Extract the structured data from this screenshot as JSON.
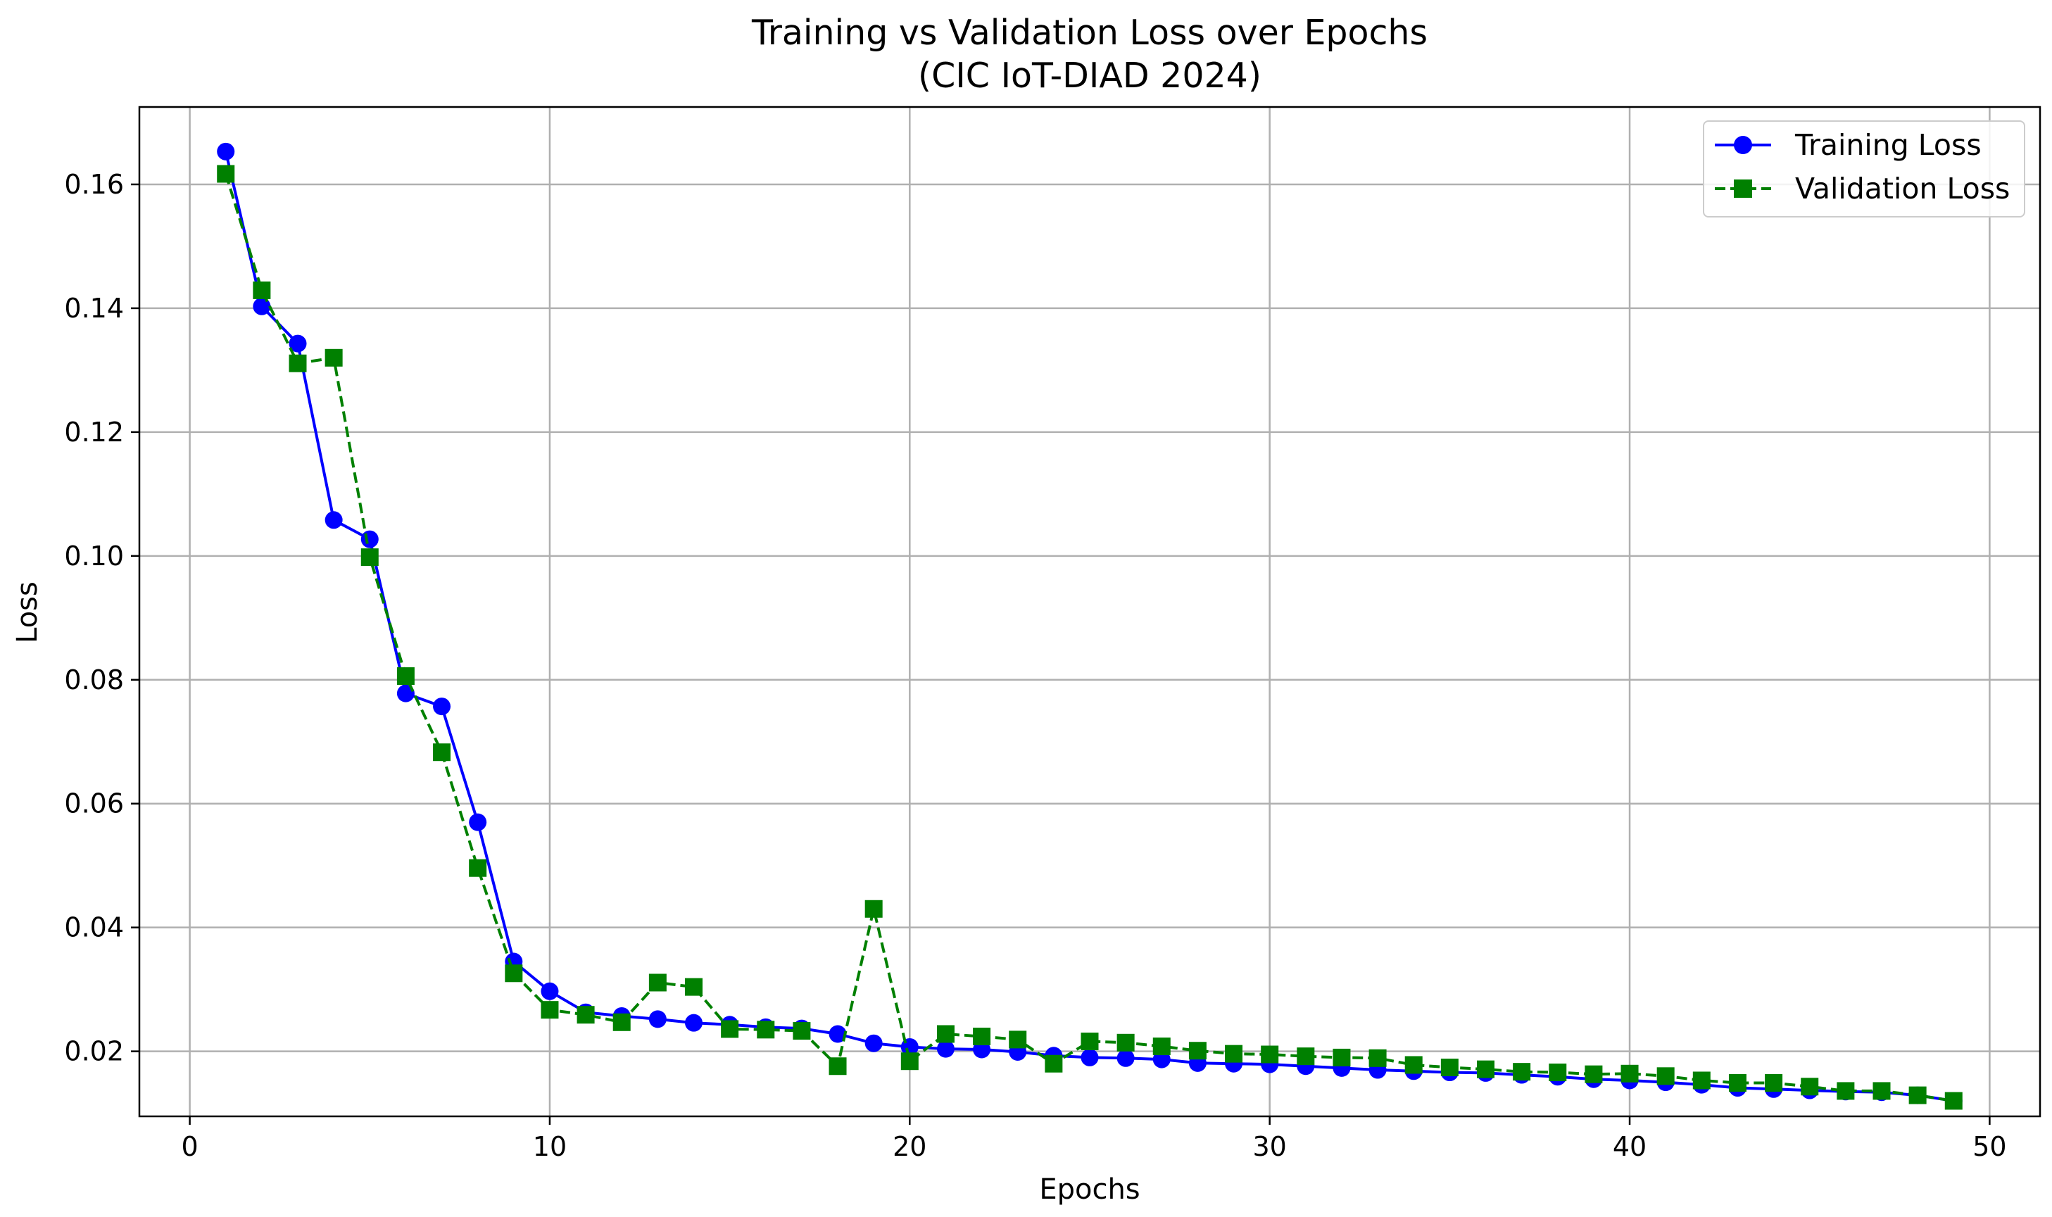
{
  "chart_data": {
    "type": "line",
    "title": "Training vs Validation Loss over Epochs",
    "subtitle": "(CIC IoT-DIAD 2024)",
    "xlabel": "Epochs",
    "ylabel": "Loss",
    "xlim": [
      -1.4,
      51.4
    ],
    "ylim": [
      0.0095,
      0.1725
    ],
    "xticks": [
      0,
      10,
      20,
      30,
      40,
      50
    ],
    "yticks": [
      0.02,
      0.04,
      0.06,
      0.08,
      0.1,
      0.12,
      0.14,
      0.16
    ],
    "ytick_labels": [
      "0.02",
      "0.04",
      "0.06",
      "0.08",
      "0.10",
      "0.12",
      "0.14",
      "0.16"
    ],
    "grid": true,
    "legend_position": "top-right",
    "x": [
      1,
      2,
      3,
      4,
      5,
      6,
      7,
      8,
      9,
      10,
      11,
      12,
      13,
      14,
      15,
      16,
      17,
      18,
      19,
      20,
      21,
      22,
      23,
      24,
      25,
      26,
      27,
      28,
      29,
      30,
      31,
      32,
      33,
      34,
      35,
      36,
      37,
      38,
      39,
      40,
      41,
      42,
      43,
      44,
      45,
      46,
      47,
      48,
      49
    ],
    "series": [
      {
        "name": "Training Loss",
        "color": "#0000ff",
        "marker": "circle",
        "linestyle": "solid",
        "values": [
          0.1653,
          0.1403,
          0.1343,
          0.1058,
          0.1027,
          0.0778,
          0.0757,
          0.057,
          0.0345,
          0.0297,
          0.0263,
          0.0257,
          0.0252,
          0.0246,
          0.0243,
          0.0239,
          0.0237,
          0.0228,
          0.0213,
          0.0207,
          0.0204,
          0.0203,
          0.0199,
          0.0193,
          0.019,
          0.0189,
          0.0187,
          0.0181,
          0.018,
          0.0179,
          0.0176,
          0.0173,
          0.017,
          0.0168,
          0.0166,
          0.0165,
          0.0162,
          0.0159,
          0.0155,
          0.0153,
          0.015,
          0.0146,
          0.0141,
          0.0139,
          0.0137,
          0.0135,
          0.0134,
          0.0129,
          0.012
        ]
      },
      {
        "name": "Validation Loss",
        "color": "#008000",
        "marker": "square",
        "linestyle": "dashed",
        "values": [
          0.1617,
          0.1429,
          0.1311,
          0.132,
          0.0998,
          0.0806,
          0.0683,
          0.0496,
          0.0326,
          0.0267,
          0.0259,
          0.0247,
          0.0311,
          0.0304,
          0.0236,
          0.0235,
          0.0233,
          0.0176,
          0.043,
          0.0184,
          0.0228,
          0.0224,
          0.0219,
          0.018,
          0.0216,
          0.0214,
          0.0208,
          0.0201,
          0.0196,
          0.0195,
          0.0192,
          0.019,
          0.0189,
          0.0178,
          0.0174,
          0.0171,
          0.0167,
          0.0166,
          0.0163,
          0.0164,
          0.016,
          0.0153,
          0.0149,
          0.0149,
          0.0143,
          0.0136,
          0.0136,
          0.0129,
          0.012
        ]
      }
    ]
  }
}
